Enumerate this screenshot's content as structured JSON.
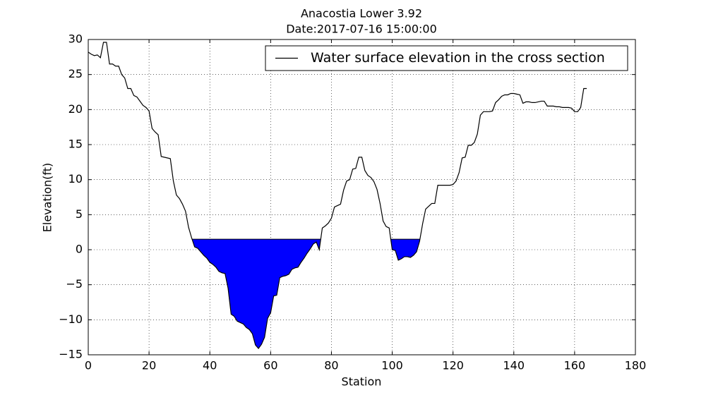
{
  "chart_data": {
    "type": "line",
    "title": "Anacostia Lower 3.92",
    "subtitle": "Date:2017-07-16 15:00:00",
    "x_label": "Station",
    "y_label": "Elevation(ft)",
    "x": [
      0,
      1,
      2,
      3,
      4,
      5,
      6,
      7,
      8,
      9,
      10,
      11,
      12,
      13,
      14,
      15,
      16,
      17,
      18,
      19,
      20,
      21,
      22,
      23,
      24,
      25,
      26,
      27,
      28,
      29,
      30,
      31,
      32,
      33,
      34,
      35,
      36,
      37,
      38,
      39,
      40,
      41,
      42,
      43,
      44,
      45,
      46,
      47,
      48,
      49,
      50,
      51,
      52,
      53,
      54,
      55,
      56,
      57,
      58,
      59,
      60,
      61,
      62,
      63,
      64,
      65,
      66,
      67,
      68,
      69,
      70,
      71,
      72,
      73,
      74,
      75,
      76,
      77,
      78,
      79,
      80,
      81,
      82,
      83,
      84,
      85,
      86,
      87,
      88,
      89,
      90,
      91,
      92,
      93,
      94,
      95,
      96,
      97,
      98,
      99,
      100,
      101,
      102,
      103,
      104,
      105,
      106,
      107,
      108,
      109,
      110,
      111,
      112,
      113,
      114,
      115,
      116,
      117,
      118,
      119,
      120,
      121,
      122,
      123,
      124,
      125,
      126,
      127,
      128,
      129,
      130,
      131,
      132,
      133,
      134,
      135,
      136,
      137,
      138,
      139,
      140,
      141,
      142,
      143,
      144,
      145,
      146,
      147,
      148,
      149,
      150,
      151,
      152,
      153,
      154,
      155,
      156,
      157,
      158,
      159,
      160,
      161,
      162,
      163,
      164
    ],
    "series": [
      {
        "name": "Water surface elevation in the cross section",
        "color": "#000000",
        "values": [
          28.2,
          27.9,
          27.7,
          27.8,
          27.4,
          29.6,
          29.6,
          26.5,
          26.5,
          26.2,
          26.2,
          25,
          24.5,
          23,
          23,
          22,
          21.8,
          21.2,
          20.6,
          20.3,
          19.8,
          17.3,
          16.8,
          16.4,
          13.3,
          13.2,
          13.1,
          13.0,
          9.8,
          7.8,
          7.3,
          6.5,
          5.5,
          3.2,
          1.7,
          0.4,
          0.2,
          -0.3,
          -0.8,
          -1.2,
          -1.8,
          -2.1,
          -2.5,
          -3.1,
          -3.3,
          -3.4,
          -5.5,
          -9.2,
          -9.5,
          -10.2,
          -10.4,
          -10.6,
          -11.1,
          -11.4,
          -12,
          -13.6,
          -14.1,
          -13.5,
          -12.5,
          -9.8,
          -9,
          -6.6,
          -6.5,
          -4,
          -3.8,
          -3.7,
          -3.5,
          -2.8,
          -2.6,
          -2.5,
          -1.8,
          -1.2,
          -0.5,
          0.1,
          0.8,
          1.1,
          0,
          3.1,
          3.4,
          3.8,
          4.5,
          6.1,
          6.3,
          6.5,
          8.5,
          9.8,
          10,
          11.5,
          11.6,
          13.2,
          13.2,
          11.3,
          10.6,
          10.3,
          9.7,
          8.6,
          6.6,
          4.1,
          3.3,
          3.1,
          0,
          -0.1,
          -1.5,
          -1.3,
          -1.0,
          -1,
          -1.1,
          -0.8,
          -0.3,
          1.2,
          3.7,
          5.8,
          6.2,
          6.6,
          6.6,
          9.2,
          9.2,
          9.2,
          9.2,
          9.2,
          9.3,
          9.8,
          11,
          13.1,
          13.2,
          14.9,
          14.9,
          15.3,
          16.5,
          19.2,
          19.7,
          19.7,
          19.7,
          19.8,
          21,
          21.4,
          21.9,
          22.1,
          22.1,
          22.3,
          22.3,
          22.2,
          22.1,
          20.9,
          21.1,
          21.1,
          21,
          21,
          21.1,
          21.2,
          21.2,
          20.5,
          20.5,
          20.5,
          20.4,
          20.4,
          20.3,
          20.3,
          20.3,
          20.2,
          19.7,
          19.7,
          20.3,
          23,
          23
        ]
      }
    ],
    "water_level": 1.5,
    "water_color": "#0000ff",
    "xlim": [
      0,
      180
    ],
    "ylim": [
      -15,
      30
    ],
    "xticks": [
      0,
      20,
      40,
      60,
      80,
      100,
      120,
      140,
      160,
      180
    ],
    "yticks": [
      {
        "value": -15,
        "label": "−15"
      },
      {
        "value": -10,
        "label": "−10"
      },
      {
        "value": -5,
        "label": "−5"
      },
      0,
      5,
      10,
      15,
      20,
      25,
      30
    ],
    "grid": true,
    "legend": "upper right"
  }
}
